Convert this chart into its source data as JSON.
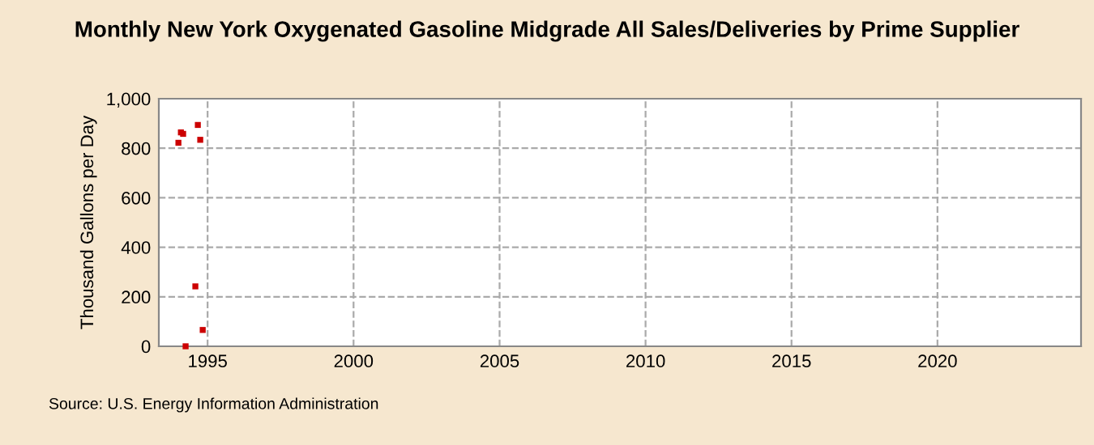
{
  "chart_data": {
    "type": "scatter",
    "title": "Monthly New York Oxygenated Gasoline Midgrade All Sales/Deliveries by Prime Supplier",
    "ylabel": "Thousand Gallons per Day",
    "x": [
      "1994-01",
      "1994-02",
      "1994-03",
      "1994-04",
      "1994-08",
      "1994-09",
      "1994-10",
      "1994-11"
    ],
    "series": [
      {
        "color": "#cc0000",
        "values": [
          822,
          864,
          858,
          0,
          242,
          894,
          834,
          66
        ]
      }
    ],
    "marker": "square",
    "xlim": [
      "1993-05",
      "2024-12"
    ],
    "xticks": [
      {
        "value": "1995-01",
        "label": "1995"
      },
      {
        "value": "2000-01",
        "label": "2000"
      },
      {
        "value": "2005-01",
        "label": "2005"
      },
      {
        "value": "2010-01",
        "label": "2010"
      },
      {
        "value": "2015-01",
        "label": "2015"
      },
      {
        "value": "2020-01",
        "label": "2020"
      }
    ],
    "ylim": [
      0,
      1000
    ],
    "yticks": [
      0,
      {
        "value": 200,
        "label": "200"
      },
      {
        "value": 400,
        "label": "400"
      },
      {
        "value": 600,
        "label": "600"
      },
      {
        "value": 800,
        "label": "800"
      },
      {
        "value": 1000,
        "label": "1,000"
      }
    ],
    "grid": true,
    "annotations": [
      "Source: U.S. Energy Information Administration"
    ]
  }
}
